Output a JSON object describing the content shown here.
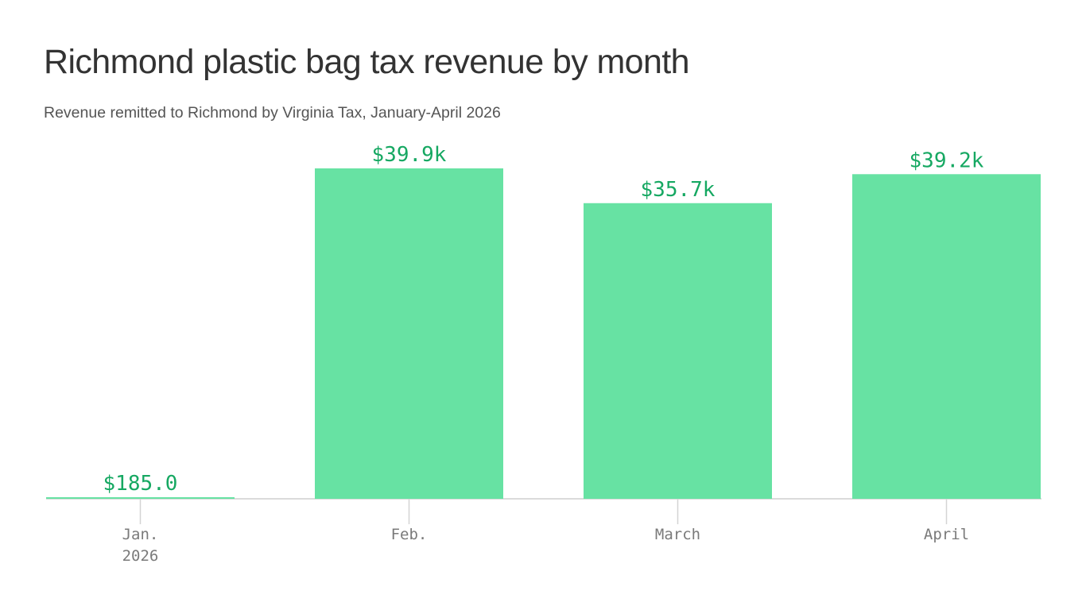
{
  "chart_data": {
    "type": "bar",
    "title": "Richmond plastic bag tax revenue by month",
    "subtitle": "Revenue remitted to Richmond by Virginia Tax, January-April 2026",
    "categories": [
      [
        "Jan.",
        "2026"
      ],
      [
        "Feb."
      ],
      [
        "March"
      ],
      [
        "April"
      ]
    ],
    "values": [
      185.0,
      39900,
      35700,
      39200
    ],
    "value_labels": [
      "$185.0",
      "$39.9k",
      "$35.7k",
      "$39.2k"
    ],
    "ylim": [
      0,
      39900
    ],
    "grid": false,
    "legend": "none",
    "xlabel": "",
    "ylabel": ""
  },
  "colors": {
    "bar": "#67e2a3",
    "label": "#16a862"
  }
}
